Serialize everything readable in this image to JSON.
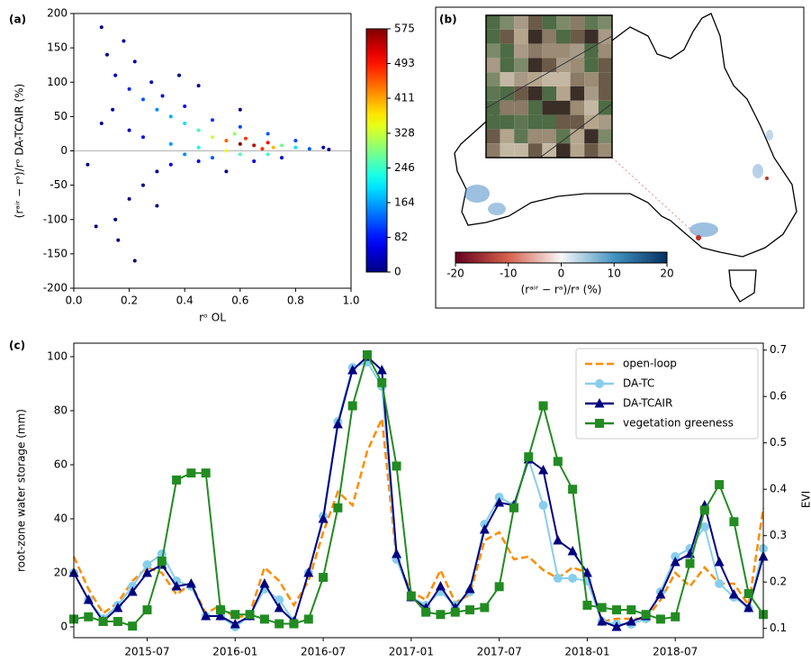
{
  "chart_data": [
    {
      "type": "scatter",
      "panel_label": "(a)",
      "x_label": "rᵒ OL",
      "y_label": "(rᵃⁱʳ − rᵒ)/rᵒ DA-TCAIR (%)",
      "xlim": [
        0,
        1.0
      ],
      "xticks": [
        {
          "value": 0,
          "label": "0.0"
        },
        0.2,
        0.4,
        0.6,
        0.8,
        {
          "value": 1.0,
          "label": "1.0"
        }
      ],
      "ylim": [
        -200,
        200
      ],
      "yticks": [
        -200,
        -150,
        -100,
        -50,
        0,
        50,
        100,
        150,
        200
      ],
      "hline": 0,
      "x": [
        0.6,
        0.65,
        0.7,
        0.55,
        0.62,
        0.68,
        0.72,
        0.5,
        0.58,
        0.75,
        0.45,
        0.8,
        0.4,
        0.85,
        0.35,
        0.3,
        0.25,
        0.2,
        0.15,
        0.12,
        0.1,
        0.18,
        0.22,
        0.28,
        0.32,
        0.4,
        0.5,
        0.6,
        0.7,
        0.8,
        0.9,
        0.92,
        0.5,
        0.45,
        0.4,
        0.35,
        0.3,
        0.25,
        0.2,
        0.15,
        0.3,
        0.55,
        0.65,
        0.75,
        0.08,
        0.05,
        0.1,
        0.14,
        0.2,
        0.25,
        0.35,
        0.45,
        0.55,
        0.6,
        0.7,
        0.45,
        0.38,
        0.16,
        0.22,
        0.6
      ],
      "values": [
        10,
        8,
        12,
        15,
        18,
        3,
        5,
        20,
        25,
        8,
        30,
        5,
        40,
        3,
        50,
        60,
        75,
        90,
        110,
        140,
        180,
        160,
        130,
        100,
        80,
        65,
        45,
        35,
        25,
        15,
        5,
        2,
        -10,
        -15,
        -5,
        -20,
        -30,
        -50,
        -70,
        -100,
        -80,
        -30,
        -15,
        -10,
        -110,
        -20,
        40,
        60,
        30,
        20,
        10,
        5,
        0,
        -5,
        -5,
        95,
        110,
        -130,
        -160,
        60
      ],
      "density": [
        575,
        540,
        500,
        450,
        470,
        480,
        400,
        330,
        300,
        280,
        250,
        200,
        200,
        120,
        170,
        150,
        120,
        90,
        40,
        15,
        5,
        8,
        20,
        30,
        60,
        80,
        100,
        110,
        120,
        110,
        30,
        10,
        120,
        60,
        150,
        60,
        20,
        8,
        5,
        3,
        3,
        10,
        60,
        40,
        2,
        2,
        10,
        30,
        40,
        80,
        160,
        230,
        350,
        260,
        250,
        10,
        5,
        2,
        2,
        8
      ],
      "colormap": "jet",
      "clim": [
        0,
        575
      ],
      "cticks": [
        0,
        82,
        164,
        246,
        328,
        411,
        493,
        575
      ]
    },
    {
      "type": "map",
      "panel_label": "(b)",
      "colormap": "RdBu",
      "clim": [
        -20,
        20
      ],
      "cticks": [
        -20,
        -10,
        0,
        10,
        20
      ],
      "colorbar_label": "(rᵃⁱʳ − rᵃ)/rᵃ (%)"
    },
    {
      "type": "line",
      "panel_label": "(c)",
      "y_label": "root-zone water storage (mm)",
      "y2_label": "EVI",
      "x": [
        "2015-02",
        "2015-03",
        "2015-04",
        "2015-05",
        "2015-06",
        "2015-07",
        "2015-08",
        "2015-09",
        "2015-10",
        "2015-11",
        "2015-12",
        "2016-01",
        "2016-02",
        "2016-03",
        "2016-04",
        "2016-05",
        "2016-06",
        "2016-07",
        "2016-08",
        "2016-09",
        "2016-10",
        "2016-11",
        "2016-12",
        "2017-01",
        "2017-02",
        "2017-03",
        "2017-04",
        "2017-05",
        "2017-06",
        "2017-07",
        "2017-08",
        "2017-09",
        "2017-10",
        "2017-11",
        "2017-12",
        "2018-01",
        "2018-02",
        "2018-03",
        "2018-04",
        "2018-05",
        "2018-06",
        "2018-07",
        "2018-08",
        "2018-09",
        "2018-10",
        "2018-11",
        "2018-12",
        "2019-01"
      ],
      "xlim": [
        "2015-02",
        "2019-01"
      ],
      "xticks": [
        "2015-07",
        "2016-01",
        "2016-07",
        "2017-01",
        "2017-07",
        "2018-01",
        "2018-07"
      ],
      "ylim": [
        -4,
        105
      ],
      "yticks": [
        0,
        20,
        40,
        60,
        80,
        100
      ],
      "y2lim": [
        0.08,
        0.715
      ],
      "y2ticks": [
        0.1,
        0.2,
        0.3,
        0.4,
        0.5,
        0.6,
        0.7
      ],
      "legend": "upper right",
      "series": [
        {
          "name": "open-loop",
          "color": "#ff8c00",
          "linestyle": "dashed",
          "values": [
            26,
            14,
            5,
            9,
            17,
            22,
            20,
            12,
            16,
            5,
            8,
            3,
            5,
            22,
            17,
            8,
            17,
            35,
            50,
            45,
            65,
            77,
            25,
            13,
            10,
            21,
            9,
            12,
            32,
            35,
            25,
            26,
            21,
            18,
            22,
            20,
            2,
            3,
            3,
            3,
            10,
            20,
            15,
            22,
            16,
            16,
            8,
            44
          ]
        },
        {
          "name": "DA-TC",
          "color": "#87ceeb",
          "marker": "circle",
          "values": [
            20,
            10,
            3,
            8,
            15,
            23,
            27,
            17,
            15,
            4,
            4,
            0,
            4,
            14,
            10,
            2,
            20,
            41,
            76,
            96,
            98,
            89,
            25,
            11,
            8,
            13,
            8,
            13,
            38,
            48,
            45,
            62,
            45,
            18,
            18,
            17,
            2,
            1,
            1,
            3,
            13,
            26,
            29,
            37,
            16,
            11,
            7,
            29
          ]
        },
        {
          "name": "DA-TCAIR",
          "color": "#000080",
          "marker": "triangle",
          "values": [
            20,
            10,
            2,
            7,
            13,
            20,
            23,
            15,
            16,
            4,
            4,
            1,
            4,
            16,
            7,
            2,
            20,
            40,
            75,
            95,
            100,
            95,
            27,
            11,
            7,
            15,
            7,
            14,
            36,
            46,
            45,
            62,
            58,
            32,
            28,
            20,
            2,
            0,
            2,
            4,
            12,
            24,
            27,
            45,
            24,
            12,
            7,
            26
          ]
        },
        {
          "name": "vegetation greeness",
          "color": "#228b22",
          "marker": "square",
          "axis": "y2",
          "values": [
            0.12,
            0.125,
            0.115,
            0.115,
            0.105,
            0.14,
            0.245,
            0.42,
            0.435,
            0.435,
            0.14,
            0.13,
            0.13,
            0.12,
            0.11,
            0.11,
            0.12,
            0.21,
            0.36,
            0.58,
            0.69,
            0.63,
            0.45,
            0.17,
            0.135,
            0.13,
            0.135,
            0.14,
            0.145,
            0.19,
            0.36,
            0.47,
            0.58,
            0.46,
            0.4,
            0.15,
            0.145,
            0.14,
            0.14,
            0.13,
            0.12,
            0.125,
            0.24,
            0.355,
            0.41,
            0.33,
            0.175,
            0.13
          ]
        }
      ]
    }
  ]
}
